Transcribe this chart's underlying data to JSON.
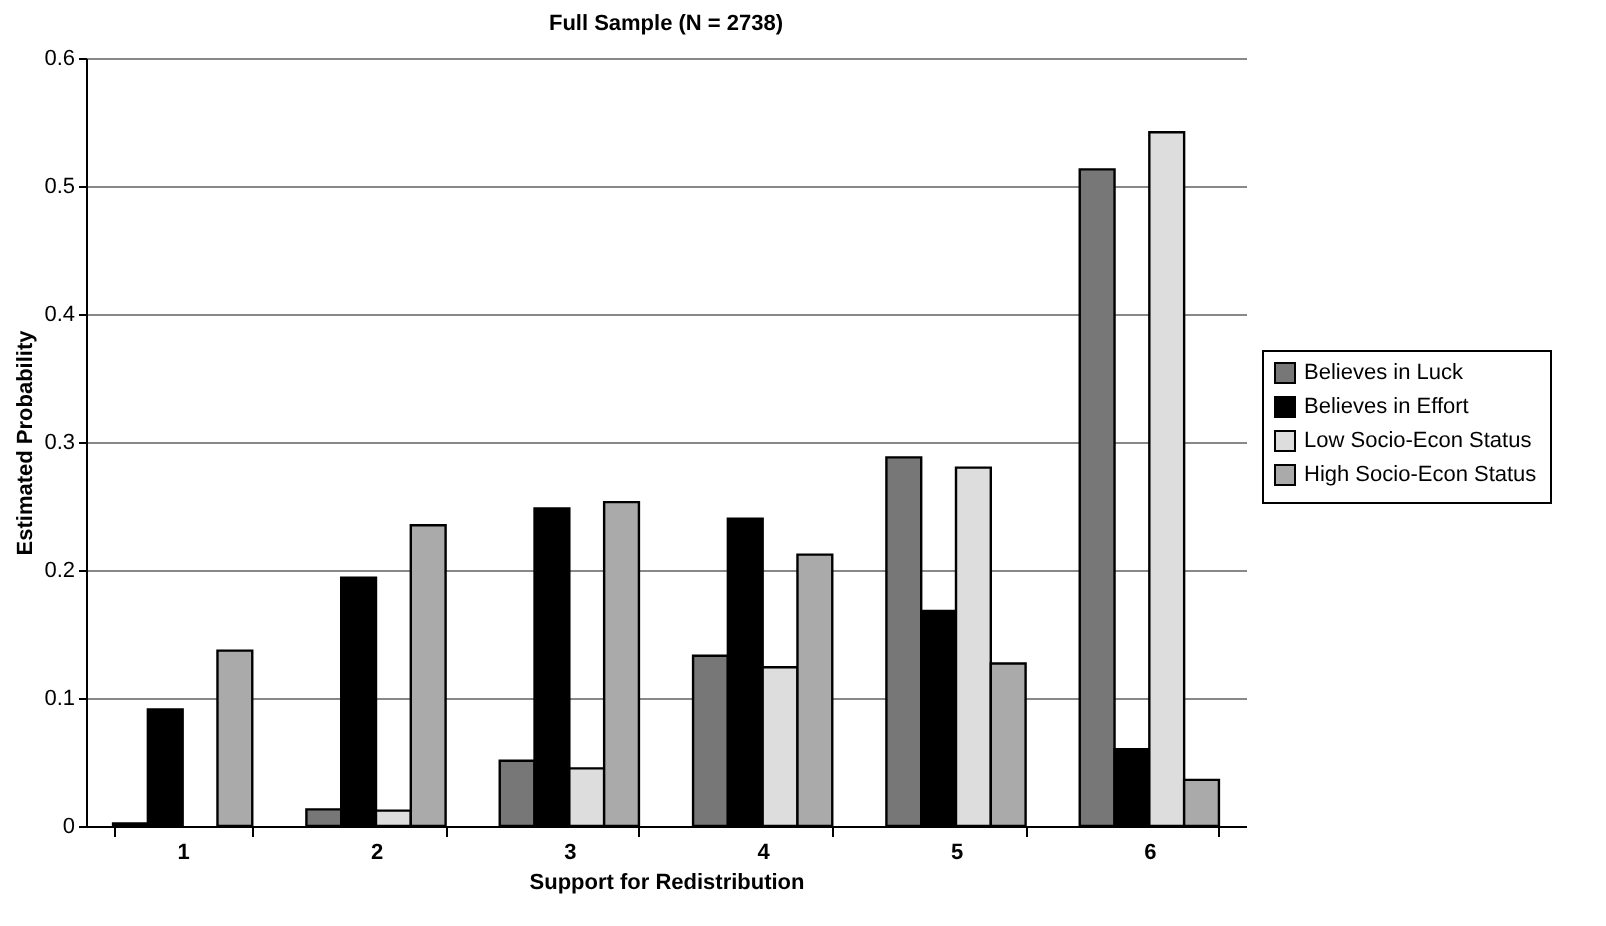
{
  "chart_data": {
    "type": "bar",
    "title": "Full Sample (N = 2738)",
    "xlabel": "Support for Redistribution",
    "ylabel": "Estimated Probability",
    "categories": [
      "1",
      "2",
      "3",
      "4",
      "5",
      "6"
    ],
    "series": [
      {
        "name": "Believes in Luck",
        "color": "#777777",
        "values": [
          0.002,
          0.013,
          0.051,
          0.133,
          0.288,
          0.513
        ]
      },
      {
        "name": "Believes in Effort",
        "color": "#000000",
        "values": [
          0.091,
          0.194,
          0.248,
          0.24,
          0.168,
          0.06
        ]
      },
      {
        "name": "Low Socio-Econ Status",
        "color": "#dddddd",
        "values": [
          null,
          0.012,
          0.045,
          0.124,
          0.28,
          0.542
        ]
      },
      {
        "name": "High Socio-Econ Status",
        "color": "#aaaaaa",
        "values": [
          0.137,
          0.235,
          0.253,
          0.212,
          0.127,
          0.036
        ]
      }
    ],
    "ylim": [
      0,
      0.6
    ],
    "yticks": [
      0,
      0.1,
      0.2,
      0.3,
      0.4,
      0.5,
      0.6
    ],
    "grid": "y",
    "legend": "right"
  }
}
